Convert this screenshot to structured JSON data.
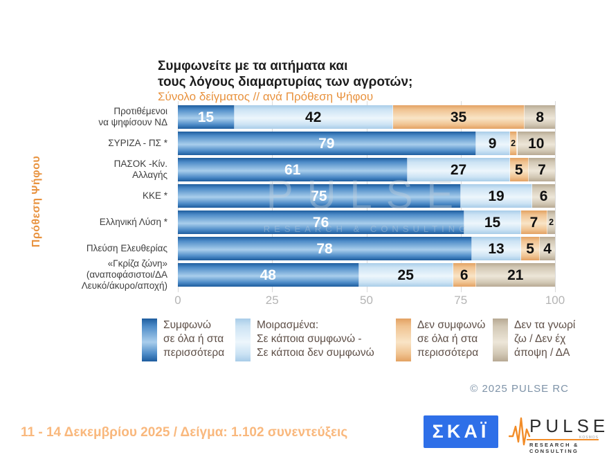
{
  "title": {
    "line1": "Συμφωνείτε με τα αιτήματα και",
    "line2": "τους λόγους διαμαρτυρίας των αγροτών;"
  },
  "subtitle": "Σύνολο δείγματος // ανά Πρόθεση Ψήφου",
  "y_axis_title": "Πρόθεση Ψήφου",
  "watermark": {
    "line1": "PULSE",
    "line2": "RESEARCH & CONSULTING"
  },
  "chart_data": {
    "type": "bar",
    "orientation": "horizontal",
    "stacked": true,
    "xlim": [
      0,
      100
    ],
    "x_ticks": [
      "0",
      "25",
      "50",
      "75",
      "100"
    ],
    "grid": true,
    "categories": [
      [
        "Προτιθέμενοι",
        "να ψηφίσουν ΝΔ"
      ],
      [
        "ΣΥΡΙΖΑ - ΠΣ *"
      ],
      [
        "ΠΑΣΟΚ -Κίν.",
        "Αλλαγής"
      ],
      [
        "ΚΚΕ *"
      ],
      [
        "Ελληνική Λύση *"
      ],
      [
        "Πλεύση Ελευθερίας"
      ],
      [
        "«Γκρίζα ζώνη»",
        "(αναποφάσιστοι/ΔΑ",
        "Λευκό/άκυρο/αποχή)"
      ]
    ],
    "series": [
      {
        "name": "Συμφωνώ σε όλα ή στα περισσότερα",
        "values": [
          15,
          79,
          61,
          75,
          76,
          78,
          48
        ],
        "color_edge": "#1d5c9e",
        "color_mid": "#4e8cc8",
        "color_light": "#a9ceec",
        "label_color": "#ffffff"
      },
      {
        "name": "Μοιρασμένα: Σε κάποια συμφωνώ - Σε κάποια δεν συμφωνώ",
        "values": [
          42,
          9,
          27,
          19,
          15,
          13,
          25
        ],
        "color_edge": "#a8cce8",
        "color_mid": "#cce3f4",
        "color_light": "#edf6fc",
        "label_color": "#111111"
      },
      {
        "name": "Δεν συμφωνώ σε όλα ή στα περισσότερα",
        "values": [
          35,
          2,
          5,
          0,
          7,
          5,
          6
        ],
        "color_edge": "#e3a162",
        "color_mid": "#f0c391",
        "color_light": "#f9e4c6",
        "label_color": "#111111"
      },
      {
        "name": "Δεν τα γνωρίζω / Δεν έχω άποψη / ΔΑ",
        "values": [
          8,
          10,
          7,
          6,
          2,
          4,
          21
        ],
        "color_edge": "#b7a993",
        "color_mid": "#d2c8b5",
        "color_light": "#ede6d8",
        "label_color": "#111111"
      }
    ]
  },
  "legend": {
    "items": [
      {
        "series": 0,
        "lines": [
          "Συμφωνώ",
          "σε όλα ή στα",
          "περισσότερα"
        ]
      },
      {
        "series": 1,
        "lines": [
          "Μοιρασμένα:",
          "Σε κάποια συμφωνώ -",
          "Σε κάποια δεν συμφωνώ"
        ]
      },
      {
        "series": 2,
        "lines": [
          "Δεν συμφωνώ",
          "σε όλα ή στα",
          "περισσότερα"
        ]
      },
      {
        "series": 3,
        "lines": [
          "Δεν τα γνωρί",
          "ζω / Δεν έχ",
          "άποψη / ΔΑ"
        ]
      }
    ]
  },
  "copyright": "©  2025  PULSE RC",
  "footer": "11 - 14 Δεκεμβρίου 2025  /  Δείγμα:  1.102 συνεντεύξεις",
  "logos": {
    "skai": "ΣΚΑΪ",
    "pulse_word": "PULSE",
    "pulse_sub": "RESEARCH & CONSULTING",
    "pulse_tiny": "KOSMOS"
  }
}
